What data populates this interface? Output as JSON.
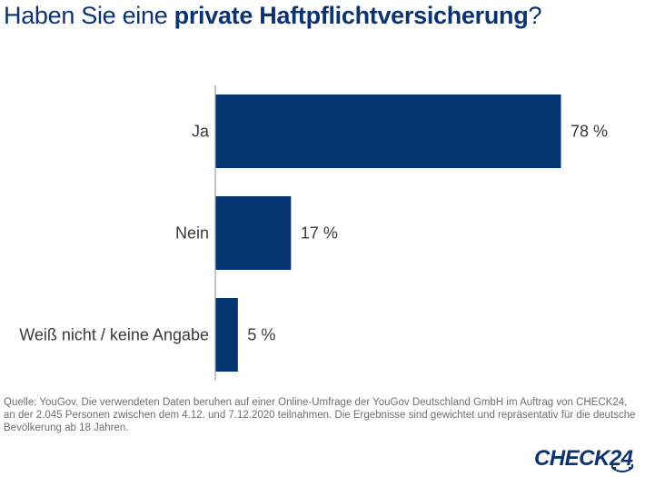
{
  "title": {
    "prefix": "Haben Sie eine ",
    "bold": "private Haftpflichtversicherung",
    "suffix": "?"
  },
  "colors": {
    "bar": "#063470",
    "title": "#0b3370",
    "axis": "#b0b0b0",
    "label": "#3a3a3a",
    "source": "#6f6f6f"
  },
  "chart_data": {
    "type": "bar",
    "orientation": "horizontal",
    "title": "Haben Sie eine private Haftpflichtversicherung?",
    "categories": [
      "Ja",
      "Nein",
      "Weiß nicht / keine Angabe"
    ],
    "values": [
      78,
      17,
      5
    ],
    "value_labels": [
      "78 %",
      "17 %",
      "5 %"
    ],
    "unit": "%",
    "xlabel": "",
    "ylabel": "",
    "xlim": [
      0,
      100
    ],
    "grid": false,
    "legend": "none"
  },
  "source": {
    "text": "Quelle: YouGov. Die verwendeten Daten beruhen auf einer Online-Umfrage der YouGov Deutschland GmbH im Auftrag von CHECK24, an der 2.045 Personen zwischen dem 4.12. und 7.12.2020 teilnahmen. Die Ergebnisse sind gewichtet und repräsentativ für die deutsche Bevölkerung ab 18 Jahren."
  },
  "logo": {
    "text": "CHECK24",
    "icon": "smile-arrow-icon"
  }
}
